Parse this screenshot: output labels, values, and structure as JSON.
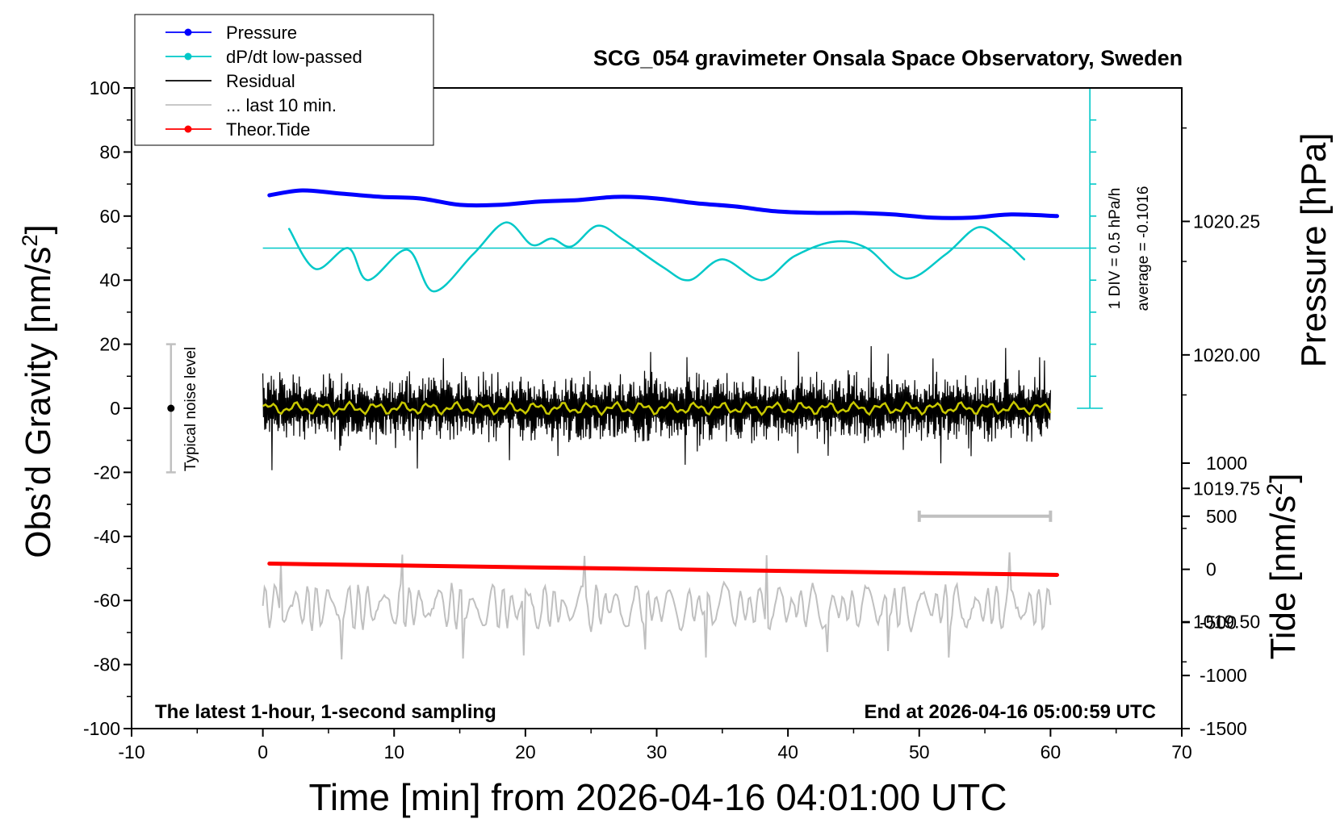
{
  "chart_data": {
    "type": "line",
    "title": "SCG_054 gravimeter Onsala Space Observatory, Sweden",
    "xlabel": "Time [min] from 2026-04-16 04:01:00 UTC",
    "ylabel_left": "Obs’d Gravity [nm/s²]",
    "ylabel_right_top": "Pressure [hPa]",
    "ylabel_right_bottom": "Tide [nm/s²]",
    "xlim": [
      -10,
      70
    ],
    "ylim_left": [
      -100,
      100
    ],
    "pressure_axis_range": [
      1019.3,
      1020.5
    ],
    "tide_axis_range": [
      -1500,
      1000
    ],
    "x_ticks": [
      "-10",
      "0",
      "10",
      "20",
      "30",
      "40",
      "50",
      "60",
      "70"
    ],
    "y_left_ticks": [
      "100",
      "80",
      "60",
      "40",
      "20",
      "0",
      "-20",
      "-40",
      "-60",
      "-80",
      "-100"
    ],
    "pressure_ticks": [
      "1020.25",
      "1020.00",
      "1019.75",
      "1019.50"
    ],
    "tide_ticks": [
      "1000",
      "500",
      "0",
      "-500",
      "-1000",
      "-1500"
    ],
    "legend_position": "top-left",
    "legend": [
      {
        "label": "Pressure",
        "color": "#0000ff",
        "marker": true
      },
      {
        "label": "dP/dt low-passed",
        "color": "#00c8c8",
        "marker": true
      },
      {
        "label": "Residual",
        "color": "#000000",
        "marker": false
      },
      {
        "label": "... last 10 min.",
        "color": "#c0c0c0",
        "marker": false
      },
      {
        "label": "Theor.Tide",
        "color": "#ff0000",
        "marker": true
      }
    ],
    "annotations": {
      "left_bottom": "The latest 1-hour, 1-second sampling",
      "right_bottom": "End at 2026-04-16 05:00:59 UTC",
      "scale_div": "1 DIV = 0.5 hPa/h",
      "average": "average = -0.1016",
      "noise_label": "Typical noise level"
    },
    "noise_bar": {
      "x": -7,
      "center": 0,
      "range": [
        -20,
        20
      ]
    },
    "gray_scale_bar": {
      "x_range": [
        50,
        60
      ],
      "tide_level": 500
    },
    "dpdt_reference_level": 50,
    "scale_axis": {
      "x": 63,
      "y_range": [
        0,
        100
      ]
    },
    "series": [
      {
        "name": "Pressure",
        "color": "#0000ff",
        "x": [
          0.5,
          3,
          6,
          9,
          12,
          15,
          18,
          21,
          24,
          27,
          30,
          33,
          36,
          39,
          42,
          45,
          48,
          51,
          54,
          57,
          60.5
        ],
        "y": [
          66.5,
          68,
          67,
          66,
          65.5,
          63.5,
          63.5,
          64.5,
          65,
          66,
          65.5,
          64,
          63,
          61.5,
          61,
          61,
          60.5,
          59.5,
          59.5,
          60.5,
          60
        ]
      },
      {
        "name": "dP/dt low-passed",
        "color": "#00c8c8",
        "x": [
          2,
          4,
          6.5,
          8,
          11,
          13,
          16,
          18.5,
          20.5,
          22,
          23.5,
          25.5,
          27.5,
          30.5,
          32.5,
          35,
          38,
          40.5,
          43.5,
          46,
          49,
          52,
          54.5,
          56.5,
          58
        ],
        "y": [
          56,
          43.5,
          50,
          40,
          49.5,
          36.5,
          48,
          58,
          51,
          53,
          50.5,
          57,
          52.5,
          44,
          40,
          46.5,
          40,
          47.5,
          52,
          50,
          40.5,
          48,
          56.5,
          52,
          46.5
        ]
      },
      {
        "name": "Theor.Tide",
        "color": "#ff0000",
        "x": [
          0.5,
          60.5
        ],
        "y": [
          -48.5,
          -52
        ]
      }
    ],
    "residual": {
      "x_range": [
        0,
        60
      ],
      "center": 0,
      "typical_amplitude": 10,
      "max_amplitude": 20
    },
    "last_10_min": {
      "x_range": [
        0,
        60
      ],
      "center": -62,
      "typical_amplitude": 7,
      "max_amplitude": 18
    }
  }
}
